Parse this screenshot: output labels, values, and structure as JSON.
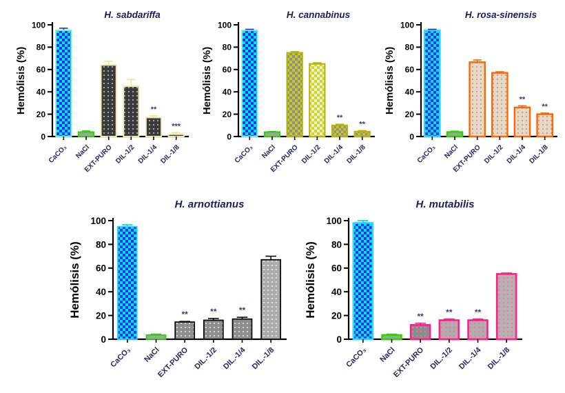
{
  "figure": {
    "background": "#FFFFFF",
    "description_visible_text_only": true
  },
  "chart_data": [
    {
      "type": "bar",
      "title": "H. sabdariffa",
      "ylabel": "Hemólisis (%)",
      "ylim": [
        0,
        100
      ],
      "yticks": [
        0,
        20,
        40,
        60,
        80,
        100
      ],
      "grid": false,
      "legend": false,
      "categories": [
        "CaCO₃",
        "NaCl",
        "EXT-PURO",
        "DIL-1/2",
        "DIL-1/4",
        "DIL-1/8"
      ],
      "values": [
        95,
        4,
        64,
        45,
        17,
        2
      ],
      "errors": [
        2,
        1,
        3.5,
        6,
        1.5,
        1.5
      ],
      "significance": [
        "",
        "",
        "",
        "",
        "**",
        "***"
      ],
      "stroke_width": 2,
      "colors": {
        "title": "#1B1B5E",
        "axis": "#000000",
        "tick_label": "#000000",
        "category_label": "#26265E",
        "significance": "#3A3A70"
      },
      "bars": [
        {
          "fill": {
            "type": "checker",
            "c1": "#00E0F8",
            "c2": "#1A35F0",
            "size": 8
          },
          "stroke": "#7DEFC4",
          "error_color": "#2233CC"
        },
        {
          "fill": {
            "type": "solid",
            "c1": "#A2A2A2"
          },
          "stroke": "#2BD600",
          "error_color": "#2BD600"
        },
        {
          "fill": {
            "type": "dots",
            "c1": "#3A3A3A",
            "c2": "#C8C8C8",
            "size": 6
          },
          "stroke": "#EFE9A8",
          "error_color": "#EDE58F"
        },
        {
          "fill": {
            "type": "dots",
            "c1": "#3A3A3A",
            "c2": "#C8C8C8",
            "size": 6
          },
          "stroke": "#EFE9A8",
          "error_color": "#EDE58F"
        },
        {
          "fill": {
            "type": "dots",
            "c1": "#3A3A3A",
            "c2": "#C8C8C8",
            "size": 6
          },
          "stroke": "#EFE9A8",
          "error_color": "#EDE58F"
        },
        {
          "fill": {
            "type": "dots",
            "c1": "#3A3A3A",
            "c2": "#C8C8C8",
            "size": 6
          },
          "stroke": "#EFE9A8",
          "error_color": "#EDE58F"
        }
      ]
    },
    {
      "type": "bar",
      "title": "H. cannabinus",
      "ylabel": "Hemólisis (%)",
      "ylim": [
        0,
        100
      ],
      "yticks": [
        0,
        20,
        40,
        60,
        80,
        100
      ],
      "grid": false,
      "legend": false,
      "categories": [
        "CaCO₃",
        "NaCl",
        "EXT-PURO",
        "DIL-1/2",
        "DIL-1/4",
        "DIL-1/8"
      ],
      "values": [
        95,
        4,
        75,
        65,
        10,
        4.5
      ],
      "errors": [
        1,
        0.5,
        1,
        1,
        1,
        0.8
      ],
      "significance": [
        "",
        "",
        "",
        "",
        "**",
        "**"
      ],
      "stroke_width": 2,
      "colors": {
        "title": "#1B1B5E",
        "axis": "#000000",
        "tick_label": "#000000",
        "category_label": "#26265E",
        "significance": "#3A3A70"
      },
      "bars": [
        {
          "fill": {
            "type": "checker",
            "c1": "#00E0F8",
            "c2": "#1A35F0",
            "size": 8
          },
          "stroke": "#7DEFC4",
          "error_color": "#2233CC"
        },
        {
          "fill": {
            "type": "solid",
            "c1": "#A2A2A2"
          },
          "stroke": "#2BD600",
          "error_color": "#2BD600"
        },
        {
          "fill": {
            "type": "checker",
            "c1": "#C9C920",
            "c2": "#8F8F8F",
            "size": 8
          },
          "stroke": "#B5B500",
          "error_color": "#B5B500"
        },
        {
          "fill": {
            "type": "checker",
            "c1": "#D4D428",
            "c2": "#EFEFD8",
            "size": 8
          },
          "stroke": "#B5B500",
          "error_color": "#B5B500"
        },
        {
          "fill": {
            "type": "checker",
            "c1": "#C9C920",
            "c2": "#8F8F8F",
            "size": 7
          },
          "stroke": "#B5B500",
          "error_color": "#B5B500"
        },
        {
          "fill": {
            "type": "checker",
            "c1": "#C9C920",
            "c2": "#8F8F8F",
            "size": 7
          },
          "stroke": "#B5B500",
          "error_color": "#B5B500"
        }
      ]
    },
    {
      "type": "bar",
      "title": "H. rosa-sinensis",
      "ylabel": "Hemólisis (%)",
      "ylim": [
        0,
        100
      ],
      "yticks": [
        0,
        20,
        40,
        60,
        80,
        100
      ],
      "grid": false,
      "legend": false,
      "categories": [
        "CaCO₃",
        "NaCl",
        "EXT-PURO",
        "DIL-1/2",
        "DIL-1/4",
        "DIL-1/8"
      ],
      "values": [
        95,
        4,
        66.5,
        57,
        26,
        20
      ],
      "errors": [
        1,
        0.8,
        2,
        1,
        1.5,
        1
      ],
      "significance": [
        "",
        "",
        "",
        "",
        "**",
        "**"
      ],
      "stroke_width": 2.4,
      "colors": {
        "title": "#1B1B5E",
        "axis": "#000000",
        "tick_label": "#000000",
        "category_label": "#26265E",
        "significance": "#3A3A70"
      },
      "bars": [
        {
          "fill": {
            "type": "checker",
            "c1": "#00E0F8",
            "c2": "#1A35F0",
            "size": 8
          },
          "stroke": "#2BD7F7",
          "error_color": "#2233CC"
        },
        {
          "fill": {
            "type": "solid",
            "c1": "#A2A2A2"
          },
          "stroke": "#2BD600",
          "error_color": "#2BD600"
        },
        {
          "fill": {
            "type": "dots",
            "c1": "#DEDACE",
            "c2": "#FF8030",
            "size": 6
          },
          "stroke": "#FF6600",
          "error_color": "#FF6600"
        },
        {
          "fill": {
            "type": "dots",
            "c1": "#DEDACE",
            "c2": "#FF8030",
            "size": 6
          },
          "stroke": "#FF6600",
          "error_color": "#FF6600"
        },
        {
          "fill": {
            "type": "dots",
            "c1": "#DEDACE",
            "c2": "#FF8030",
            "size": 6
          },
          "stroke": "#FF6600",
          "error_color": "#FF6600"
        },
        {
          "fill": {
            "type": "dots",
            "c1": "#DEDACE",
            "c2": "#FF8030",
            "size": 6
          },
          "stroke": "#FF6600",
          "error_color": "#FF6600"
        }
      ]
    },
    {
      "type": "bar",
      "title": "H. arnottianus",
      "ylabel": "Hemólisis (%)",
      "ylim": [
        0,
        100
      ],
      "yticks": [
        0,
        20,
        40,
        60,
        80,
        100
      ],
      "grid": false,
      "legend": false,
      "categories": [
        "CaCO₃",
        "NaCl",
        "EXT-PURO",
        "DIL.-1/2",
        "DIL.-1/4",
        "DIL.-1/8"
      ],
      "values": [
        95,
        3.5,
        14.5,
        16,
        17,
        67
      ],
      "errors": [
        1.5,
        0.8,
        0.5,
        1.5,
        1.5,
        3
      ],
      "significance": [
        "",
        "",
        "**",
        "**",
        "**",
        ""
      ],
      "stroke_width": 1.8,
      "colors": {
        "title": "#1B1B5E",
        "axis": "#000000",
        "tick_label": "#000000",
        "category_label": "#26265E",
        "significance": "#3A3A70"
      },
      "bars": [
        {
          "fill": {
            "type": "checker",
            "c1": "#00E0F8",
            "c2": "#1A35F0",
            "size": 8
          },
          "stroke": "#2BD7F7",
          "error_color": "#00CFEF"
        },
        {
          "fill": {
            "type": "solid",
            "c1": "#A2A2A2"
          },
          "stroke": "#2BD600",
          "error_color": "#2BD600"
        },
        {
          "fill": {
            "type": "dots",
            "c1": "#8E8E8E",
            "c2": "#F0F0F0",
            "size": 6
          },
          "stroke": "#0A0A0A",
          "error_color": "#0A0A0A"
        },
        {
          "fill": {
            "type": "dots",
            "c1": "#8E8E8E",
            "c2": "#F0F0F0",
            "size": 6
          },
          "stroke": "#0A0A0A",
          "error_color": "#0A0A0A"
        },
        {
          "fill": {
            "type": "dots",
            "c1": "#8E8E8E",
            "c2": "#F0F0F0",
            "size": 6
          },
          "stroke": "#0A0A0A",
          "error_color": "#0A0A0A"
        },
        {
          "fill": {
            "type": "dots",
            "c1": "#ABABAB",
            "c2": "#F2F2F2",
            "size": 6
          },
          "stroke": "#0A0A0A",
          "error_color": "#0A0A0A"
        }
      ]
    },
    {
      "type": "bar",
      "title": "H. mutabilis",
      "ylabel": "Hemólisis (%)",
      "ylim": [
        0,
        100
      ],
      "yticks": [
        0,
        20,
        40,
        60,
        80,
        100
      ],
      "grid": false,
      "legend": false,
      "categories": [
        "CaCO₃",
        "NaCl",
        "EXT-PURO",
        "DIL.-1/2",
        "DIL.-1/4",
        "DIL.-1/8"
      ],
      "values": [
        98,
        3.5,
        12,
        16,
        16,
        55
      ],
      "errors": [
        2,
        0.8,
        1.5,
        1,
        1,
        0.8
      ],
      "significance": [
        "",
        "",
        "**",
        "**",
        "**",
        ""
      ],
      "stroke_width": 2.6,
      "colors": {
        "title": "#1B1B5E",
        "axis": "#000000",
        "tick_label": "#000000",
        "category_label": "#26265E",
        "significance": "#3A3A70"
      },
      "bars": [
        {
          "fill": {
            "type": "checker",
            "c1": "#00E0F8",
            "c2": "#1A35F0",
            "size": 8
          },
          "stroke": "#2BD7F7",
          "error_color": "#00CFEF"
        },
        {
          "fill": {
            "type": "solid",
            "c1": "#A2A2A2"
          },
          "stroke": "#2BD600",
          "error_color": "#2BD600"
        },
        {
          "fill": {
            "type": "dots",
            "c1": "#8C8C8C",
            "c2": "#F07FAF",
            "size": 6
          },
          "stroke": "#FF1E8C",
          "error_color": "#FF1E8C"
        },
        {
          "fill": {
            "type": "dots",
            "c1": "#B3ABAB",
            "c2": "#F070A8",
            "size": 6
          },
          "stroke": "#FF1E8C",
          "error_color": "#FF1E8C"
        },
        {
          "fill": {
            "type": "dots",
            "c1": "#B3ABAB",
            "c2": "#F070A8",
            "size": 6
          },
          "stroke": "#FF1E8C",
          "error_color": "#FF1E8C"
        },
        {
          "fill": {
            "type": "dots",
            "c1": "#B8B0B0",
            "c2": "#F070A8",
            "size": 6
          },
          "stroke": "#FF1E8C",
          "error_color": "#FF1E8C"
        }
      ]
    }
  ]
}
